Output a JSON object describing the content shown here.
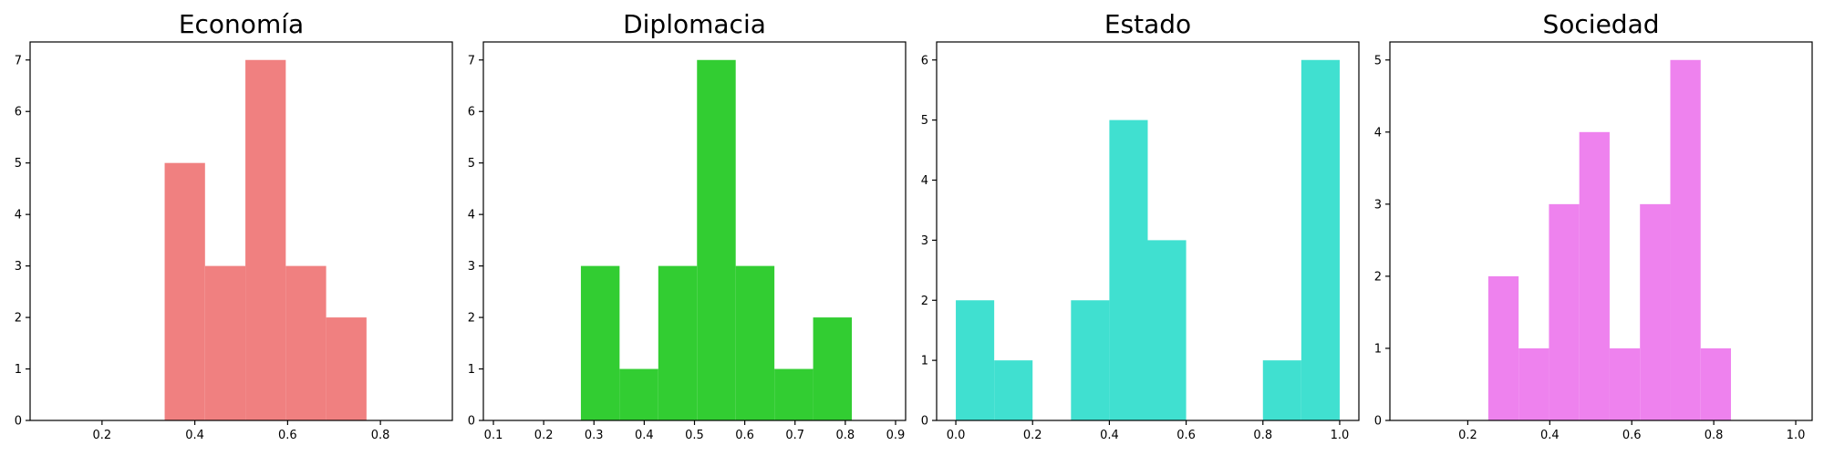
{
  "chart_data": [
    {
      "type": "bar",
      "title": "Economía",
      "color": "#f08080",
      "xlabel": "",
      "ylabel": "",
      "xlim": [
        0.045,
        0.955
      ],
      "ylim": [
        0,
        7.35
      ],
      "xticks": [
        0.2,
        0.4,
        0.6,
        0.8
      ],
      "xtick_labels": [
        "0.2",
        "0.4",
        "0.6",
        "0.8"
      ],
      "yticks": [
        0,
        1,
        2,
        3,
        4,
        5,
        6,
        7
      ],
      "ytick_labels": [
        "0",
        "1",
        "2",
        "3",
        "4",
        "5",
        "6",
        "7"
      ],
      "bins": [
        {
          "x0": 0.335,
          "x1": 0.422,
          "value": 5
        },
        {
          "x0": 0.422,
          "x1": 0.509,
          "value": 3
        },
        {
          "x0": 0.509,
          "x1": 0.596,
          "value": 7
        },
        {
          "x0": 0.596,
          "x1": 0.683,
          "value": 3
        },
        {
          "x0": 0.683,
          "x1": 0.77,
          "value": 2
        }
      ]
    },
    {
      "type": "bar",
      "title": "Diplomacia",
      "color": "#32cd32",
      "xlabel": "",
      "ylabel": "",
      "xlim": [
        0.08,
        0.92
      ],
      "ylim": [
        0,
        7.35
      ],
      "xticks": [
        0.1,
        0.2,
        0.3,
        0.4,
        0.5,
        0.6,
        0.7,
        0.8,
        0.9
      ],
      "xtick_labels": [
        "0.1",
        "0.2",
        "0.3",
        "0.4",
        "0.5",
        "0.6",
        "0.7",
        "0.8",
        "0.9"
      ],
      "yticks": [
        0,
        1,
        2,
        3,
        4,
        5,
        6,
        7
      ],
      "ytick_labels": [
        "0",
        "1",
        "2",
        "3",
        "4",
        "5",
        "6",
        "7"
      ],
      "bins": [
        {
          "x0": 0.274,
          "x1": 0.351,
          "value": 3
        },
        {
          "x0": 0.351,
          "x1": 0.428,
          "value": 1
        },
        {
          "x0": 0.428,
          "x1": 0.505,
          "value": 3
        },
        {
          "x0": 0.505,
          "x1": 0.582,
          "value": 7
        },
        {
          "x0": 0.582,
          "x1": 0.659,
          "value": 3
        },
        {
          "x0": 0.659,
          "x1": 0.736,
          "value": 1
        },
        {
          "x0": 0.736,
          "x1": 0.813,
          "value": 2
        }
      ]
    },
    {
      "type": "bar",
      "title": "Estado",
      "color": "#40e0d0",
      "xlabel": "",
      "ylabel": "",
      "xlim": [
        -0.05,
        1.05
      ],
      "ylim": [
        0,
        6.3
      ],
      "xticks": [
        0.0,
        0.2,
        0.4,
        0.6,
        0.8,
        1.0
      ],
      "xtick_labels": [
        "0.0",
        "0.2",
        "0.4",
        "0.6",
        "0.8",
        "1.0"
      ],
      "yticks": [
        0,
        1,
        2,
        3,
        4,
        5,
        6
      ],
      "ytick_labels": [
        "0",
        "1",
        "2",
        "3",
        "4",
        "5",
        "6"
      ],
      "bins": [
        {
          "x0": 0.0,
          "x1": 0.1,
          "value": 2
        },
        {
          "x0": 0.1,
          "x1": 0.2,
          "value": 1
        },
        {
          "x0": 0.2,
          "x1": 0.3,
          "value": 0
        },
        {
          "x0": 0.3,
          "x1": 0.4,
          "value": 2
        },
        {
          "x0": 0.4,
          "x1": 0.5,
          "value": 5
        },
        {
          "x0": 0.5,
          "x1": 0.6,
          "value": 3
        },
        {
          "x0": 0.6,
          "x1": 0.7,
          "value": 0
        },
        {
          "x0": 0.7,
          "x1": 0.8,
          "value": 0
        },
        {
          "x0": 0.8,
          "x1": 0.9,
          "value": 1
        },
        {
          "x0": 0.9,
          "x1": 1.0,
          "value": 6
        }
      ]
    },
    {
      "type": "bar",
      "title": "Sociedad",
      "color": "#ee82ee",
      "xlabel": "",
      "ylabel": "",
      "xlim": [
        0.01,
        1.04
      ],
      "ylim": [
        0,
        5.25
      ],
      "xticks": [
        0.2,
        0.4,
        0.6,
        0.8,
        1.0
      ],
      "xtick_labels": [
        "0.2",
        "0.4",
        "0.6",
        "0.8",
        "1.0"
      ],
      "yticks": [
        0,
        1,
        2,
        3,
        4,
        5
      ],
      "ytick_labels": [
        "0",
        "1",
        "2",
        "3",
        "4",
        "5"
      ],
      "bins": [
        {
          "x0": 0.25,
          "x1": 0.324,
          "value": 2
        },
        {
          "x0": 0.324,
          "x1": 0.398,
          "value": 1
        },
        {
          "x0": 0.398,
          "x1": 0.472,
          "value": 3
        },
        {
          "x0": 0.472,
          "x1": 0.546,
          "value": 4
        },
        {
          "x0": 0.546,
          "x1": 0.62,
          "value": 1
        },
        {
          "x0": 0.62,
          "x1": 0.694,
          "value": 3
        },
        {
          "x0": 0.694,
          "x1": 0.768,
          "value": 5
        },
        {
          "x0": 0.768,
          "x1": 0.842,
          "value": 1
        }
      ]
    }
  ]
}
